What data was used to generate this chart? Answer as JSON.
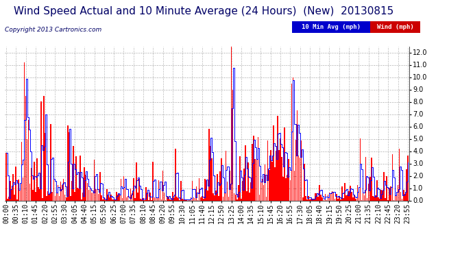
{
  "title": "Wind Speed Actual and 10 Minute Average (24 Hours)  (New)  20130815",
  "copyright": "Copyright 2013 Cartronics.com",
  "ylim": [
    0.0,
    12.5
  ],
  "ytick_vals": [
    0.0,
    1.0,
    2.0,
    3.0,
    4.0,
    5.0,
    6.0,
    7.0,
    8.0,
    9.0,
    10.0,
    11.0,
    12.0
  ],
  "ytick_labels": [
    "0.0",
    "1.0",
    "2.0",
    "3.0",
    "4.0",
    "5.0",
    "6.0",
    "7.0",
    "8.0",
    "9.0",
    "10.0",
    "11.0",
    "12.0"
  ],
  "bg_color": "#ffffff",
  "grid_h_color": "#999999",
  "grid_v_color": "#bbbbbb",
  "bar_color": "#ff0000",
  "avg_color": "#0000ff",
  "gray_bar_color": "#888888",
  "legend_avg_bg": "#0000cc",
  "legend_wind_bg": "#cc0000",
  "legend_avg_text": "10 Min Avg (mph)",
  "legend_wind_text": "Wind (mph)",
  "title_fontsize": 11,
  "tick_fontsize": 7,
  "copyright_fontsize": 6.5,
  "n_points": 288,
  "tick_interval_minutes": 35,
  "wind_seed": 42,
  "x_tick_labels": [
    "00:00",
    "00:35",
    "01:10",
    "01:45",
    "02:20",
    "02:55",
    "03:30",
    "04:05",
    "04:40",
    "05:15",
    "05:50",
    "06:25",
    "07:00",
    "07:35",
    "08:10",
    "08:45",
    "09:20",
    "09:55",
    "10:30",
    "11:05",
    "11:40",
    "12:15",
    "12:50",
    "13:25",
    "14:00",
    "14:35",
    "15:10",
    "15:45",
    "16:20",
    "16:55",
    "17:30",
    "18:05",
    "18:40",
    "19:15",
    "19:50",
    "20:25",
    "21:00",
    "21:35",
    "22:10",
    "22:45",
    "23:20",
    "23:55"
  ]
}
